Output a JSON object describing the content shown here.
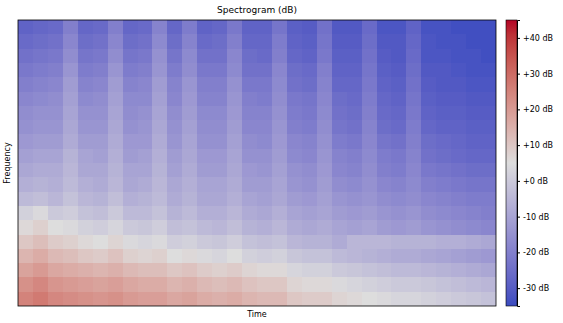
{
  "chart_data": {
    "type": "heatmap",
    "title": "Spectrogram (dB)",
    "x_label": "Time",
    "y_label": "Frequency",
    "tick_labels": false,
    "zlim": [
      -35,
      45
    ],
    "zticks": [
      {
        "value": 40,
        "label": "+40 dB"
      },
      {
        "value": 30,
        "label": "+30 dB"
      },
      {
        "value": 20,
        "label": "+20 dB"
      },
      {
        "value": 10,
        "label": "+10 dB"
      },
      {
        "value": 0,
        "label": "+0 dB"
      },
      {
        "value": -10,
        "label": "-10 dB"
      },
      {
        "value": -20,
        "label": "-20 dB"
      },
      {
        "value": -30,
        "label": "-30 dB"
      }
    ],
    "z": [
      [
        -28,
        -27,
        -26,
        -20,
        -27,
        -26,
        -20,
        -27,
        -26,
        -19,
        -27,
        -21,
        -28,
        -27,
        -22,
        -28,
        -28,
        -23,
        -29,
        -30,
        -24,
        -31,
        -31,
        -26,
        -32,
        -32,
        -28,
        -33,
        -33,
        -34,
        -34,
        -34
      ],
      [
        -26,
        -25,
        -24,
        -18,
        -25,
        -24,
        -18,
        -25,
        -24,
        -17,
        -25,
        -19,
        -26,
        -25,
        -20,
        -27,
        -27,
        -21,
        -28,
        -29,
        -23,
        -30,
        -30,
        -25,
        -31,
        -31,
        -27,
        -32,
        -33,
        -33,
        -34,
        -34
      ],
      [
        -24,
        -23,
        -22,
        -16,
        -23,
        -22,
        -16,
        -23,
        -22,
        -15,
        -23,
        -17,
        -24,
        -24,
        -18,
        -25,
        -26,
        -20,
        -27,
        -28,
        -22,
        -29,
        -29,
        -24,
        -30,
        -31,
        -26,
        -32,
        -32,
        -33,
        -33,
        -34
      ],
      [
        -22,
        -21,
        -20,
        -14,
        -21,
        -20,
        -14,
        -21,
        -20,
        -14,
        -21,
        -16,
        -22,
        -22,
        -17,
        -24,
        -24,
        -18,
        -25,
        -26,
        -20,
        -28,
        -28,
        -23,
        -29,
        -30,
        -25,
        -31,
        -31,
        -32,
        -33,
        -33
      ],
      [
        -20,
        -19,
        -18,
        -12,
        -19,
        -18,
        -12,
        -19,
        -18,
        -12,
        -19,
        -14,
        -20,
        -20,
        -15,
        -22,
        -22,
        -17,
        -24,
        -25,
        -19,
        -27,
        -27,
        -22,
        -28,
        -29,
        -24,
        -30,
        -31,
        -31,
        -32,
        -32
      ],
      [
        -18,
        -17,
        -16,
        -11,
        -17,
        -16,
        -11,
        -17,
        -17,
        -11,
        -18,
        -13,
        -19,
        -19,
        -14,
        -20,
        -21,
        -16,
        -22,
        -23,
        -18,
        -25,
        -26,
        -21,
        -27,
        -28,
        -23,
        -29,
        -30,
        -30,
        -31,
        -31
      ],
      [
        -16,
        -15,
        -15,
        -10,
        -15,
        -15,
        -10,
        -16,
        -15,
        -10,
        -16,
        -12,
        -17,
        -17,
        -13,
        -19,
        -19,
        -15,
        -21,
        -22,
        -17,
        -24,
        -25,
        -20,
        -26,
        -27,
        -22,
        -28,
        -29,
        -29,
        -30,
        -30
      ],
      [
        -15,
        -14,
        -14,
        -9,
        -14,
        -14,
        -9,
        -15,
        -14,
        -9,
        -15,
        -11,
        -16,
        -16,
        -12,
        -18,
        -18,
        -14,
        -20,
        -21,
        -16,
        -23,
        -24,
        -19,
        -25,
        -26,
        -21,
        -27,
        -28,
        -28,
        -29,
        -29
      ],
      [
        -13,
        -12,
        -12,
        -8,
        -12,
        -12,
        -8,
        -13,
        -13,
        -8,
        -14,
        -10,
        -15,
        -15,
        -11,
        -16,
        -17,
        -13,
        -18,
        -19,
        -15,
        -21,
        -22,
        -18,
        -23,
        -24,
        -20,
        -25,
        -26,
        -27,
        -28,
        -28
      ],
      [
        -11,
        -10,
        -10,
        -6,
        -10,
        -11,
        -7,
        -12,
        -11,
        -7,
        -12,
        -9,
        -13,
        -13,
        -10,
        -15,
        -15,
        -12,
        -17,
        -18,
        -14,
        -19,
        -20,
        -17,
        -21,
        -22,
        -19,
        -24,
        -25,
        -26,
        -27,
        -27
      ],
      [
        -9,
        -8,
        -8,
        -5,
        -9,
        -9,
        -6,
        -10,
        -10,
        -6,
        -11,
        -8,
        -12,
        -12,
        -9,
        -13,
        -14,
        -11,
        -15,
        -16,
        -13,
        -18,
        -19,
        -16,
        -20,
        -21,
        -18,
        -22,
        -23,
        -24,
        -25,
        -25
      ],
      [
        -7,
        -6,
        -7,
        -4,
        -7,
        -8,
        -5,
        -9,
        -8,
        -5,
        -9,
        -7,
        -10,
        -10,
        -8,
        -12,
        -12,
        -10,
        -14,
        -15,
        -12,
        -16,
        -17,
        -15,
        -18,
        -19,
        -17,
        -20,
        -21,
        -22,
        -23,
        -23
      ],
      [
        -4,
        -3,
        -5,
        -2,
        -5,
        -6,
        -3,
        -7,
        -6,
        -4,
        -8,
        -6,
        -9,
        -9,
        -7,
        -10,
        -11,
        -9,
        -12,
        -13,
        -11,
        -14,
        -15,
        -14,
        -16,
        -17,
        -16,
        -18,
        -19,
        -20,
        -21,
        -21
      ],
      [
        2,
        4,
        0,
        1,
        -2,
        -3,
        0,
        -4,
        -4,
        -2,
        -6,
        -4,
        -7,
        -7,
        -5,
        -8,
        -9,
        -7,
        -10,
        -11,
        -10,
        -12,
        -13,
        -12,
        -14,
        -15,
        -14,
        -16,
        -17,
        -18,
        -19,
        -20
      ],
      [
        6,
        8,
        5,
        4,
        2,
        1,
        3,
        0,
        -1,
        1,
        -3,
        -2,
        -4,
        -5,
        -3,
        -6,
        -7,
        -5,
        -8,
        -9,
        -8,
        -10,
        -11,
        -10,
        -12,
        -13,
        -12,
        -14,
        -15,
        -16,
        -17,
        -18
      ],
      [
        10,
        12,
        9,
        8,
        6,
        5,
        7,
        4,
        3,
        4,
        1,
        2,
        0,
        -1,
        1,
        -2,
        -3,
        -2,
        -5,
        -6,
        -6,
        -8,
        -5,
        -5,
        -5,
        -6,
        -6,
        -6,
        -7,
        -7,
        -8,
        -9
      ],
      [
        14,
        16,
        13,
        12,
        10,
        9,
        11,
        8,
        7,
        8,
        5,
        6,
        4,
        3,
        5,
        2,
        1,
        2,
        -1,
        -2,
        -2,
        -4,
        -5,
        -6,
        -7,
        -8,
        -8,
        -9,
        -10,
        -11,
        -12,
        -13
      ],
      [
        18,
        20,
        17,
        16,
        15,
        14,
        15,
        13,
        12,
        12,
        10,
        11,
        9,
        8,
        9,
        7,
        6,
        6,
        3,
        2,
        2,
        0,
        -1,
        -2,
        -3,
        -4,
        -4,
        -5,
        -6,
        -7,
        -8,
        -9
      ],
      [
        22,
        24,
        21,
        20,
        19,
        18,
        19,
        17,
        16,
        16,
        14,
        15,
        13,
        12,
        13,
        11,
        10,
        10,
        7,
        6,
        6,
        4,
        3,
        2,
        1,
        0,
        0,
        -1,
        -2,
        -3,
        -4,
        -5
      ],
      [
        25,
        27,
        24,
        23,
        22,
        21,
        22,
        20,
        19,
        19,
        17,
        18,
        16,
        15,
        16,
        14,
        13,
        13,
        10,
        9,
        9,
        7,
        6,
        5,
        4,
        3,
        3,
        2,
        1,
        0,
        -1,
        -2
      ]
    ]
  }
}
